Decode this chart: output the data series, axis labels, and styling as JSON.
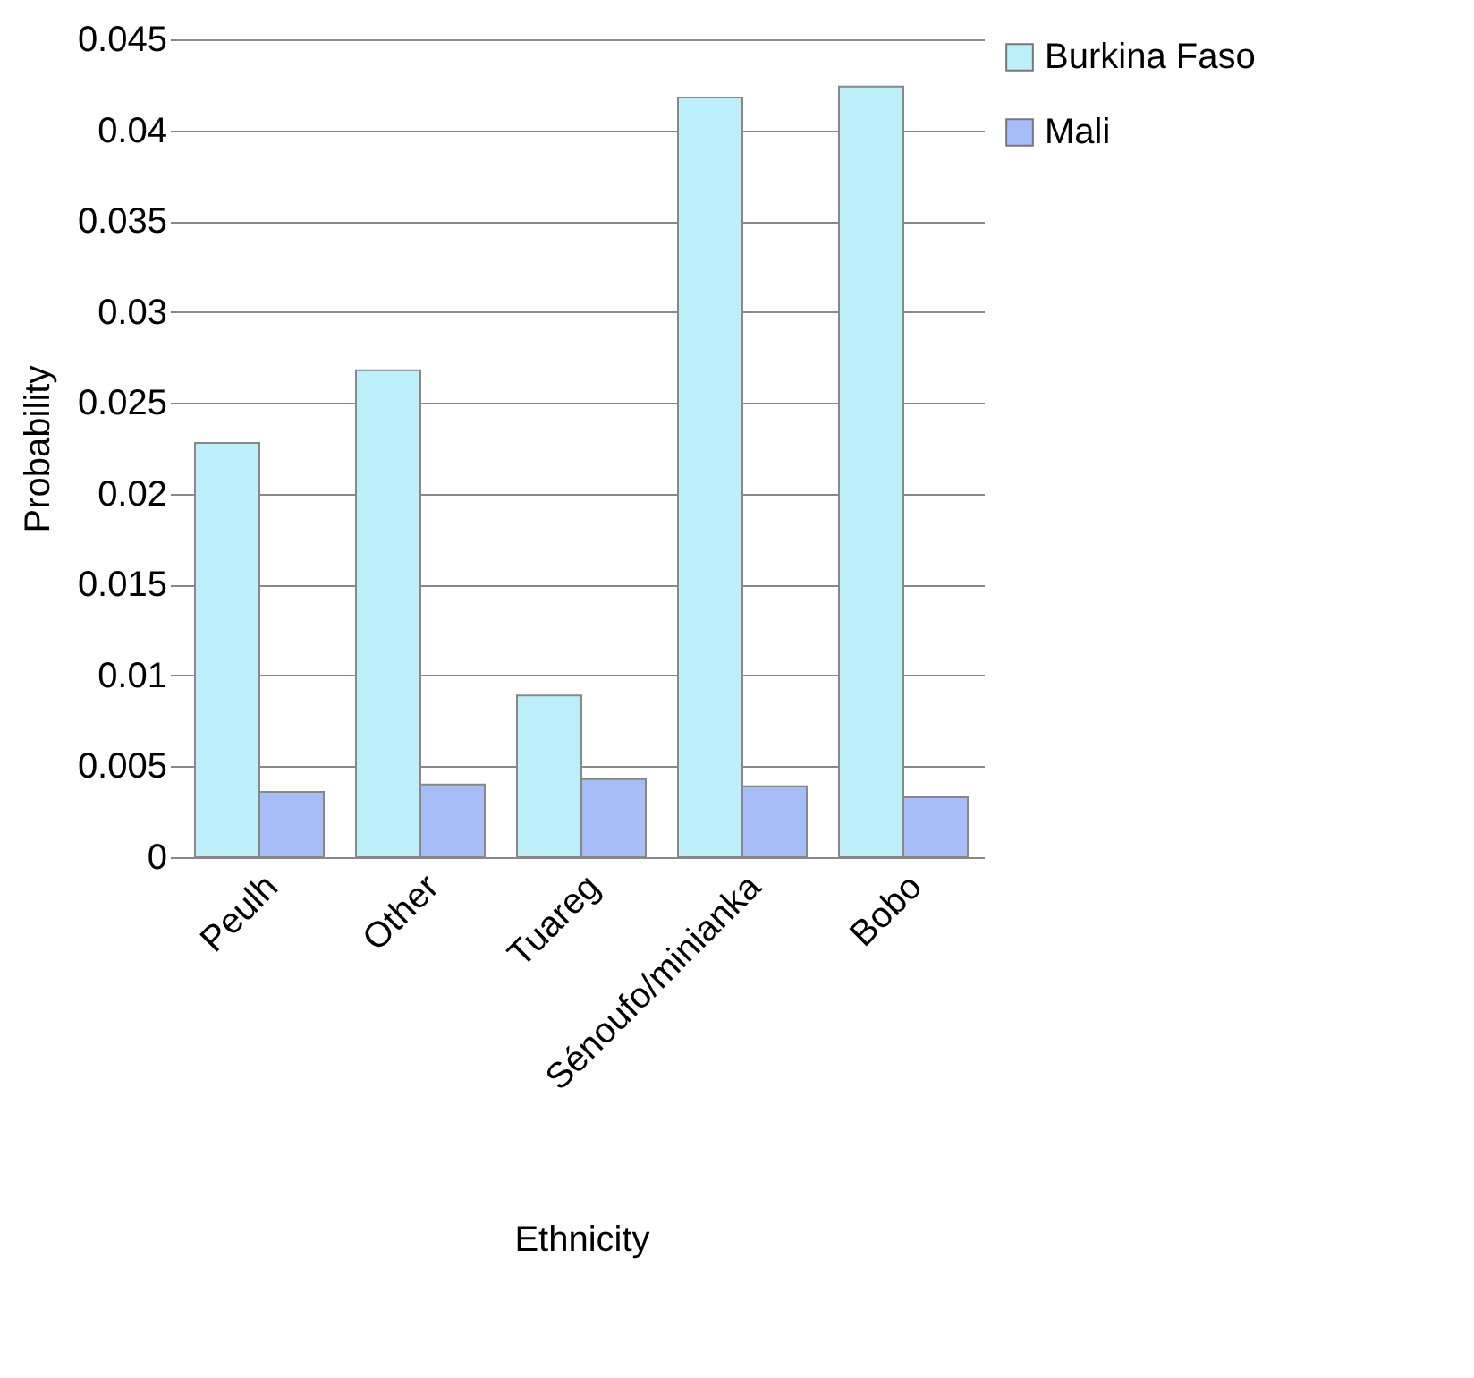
{
  "chart_data": {
    "type": "bar",
    "xlabel": "Ethnicity",
    "ylabel": "Probability",
    "categories": [
      "Peulh",
      "Other",
      "Tuareg",
      "Sénoufo/minianka",
      "Bobo"
    ],
    "series": [
      {
        "name": "Burkina Faso",
        "color": "#bdeffb",
        "values": [
          0.0228,
          0.0268,
          0.0089,
          0.0418,
          0.0424
        ]
      },
      {
        "name": "Mali",
        "color": "#a6bdf8",
        "values": [
          0.0036,
          0.004,
          0.0043,
          0.0039,
          0.0033
        ]
      }
    ],
    "ylim": [
      0,
      0.045
    ],
    "yticks": [
      0,
      0.005,
      0.01,
      0.015,
      0.02,
      0.025,
      0.03,
      0.035,
      0.04,
      0.045
    ],
    "grid": "y",
    "legend": "right"
  }
}
